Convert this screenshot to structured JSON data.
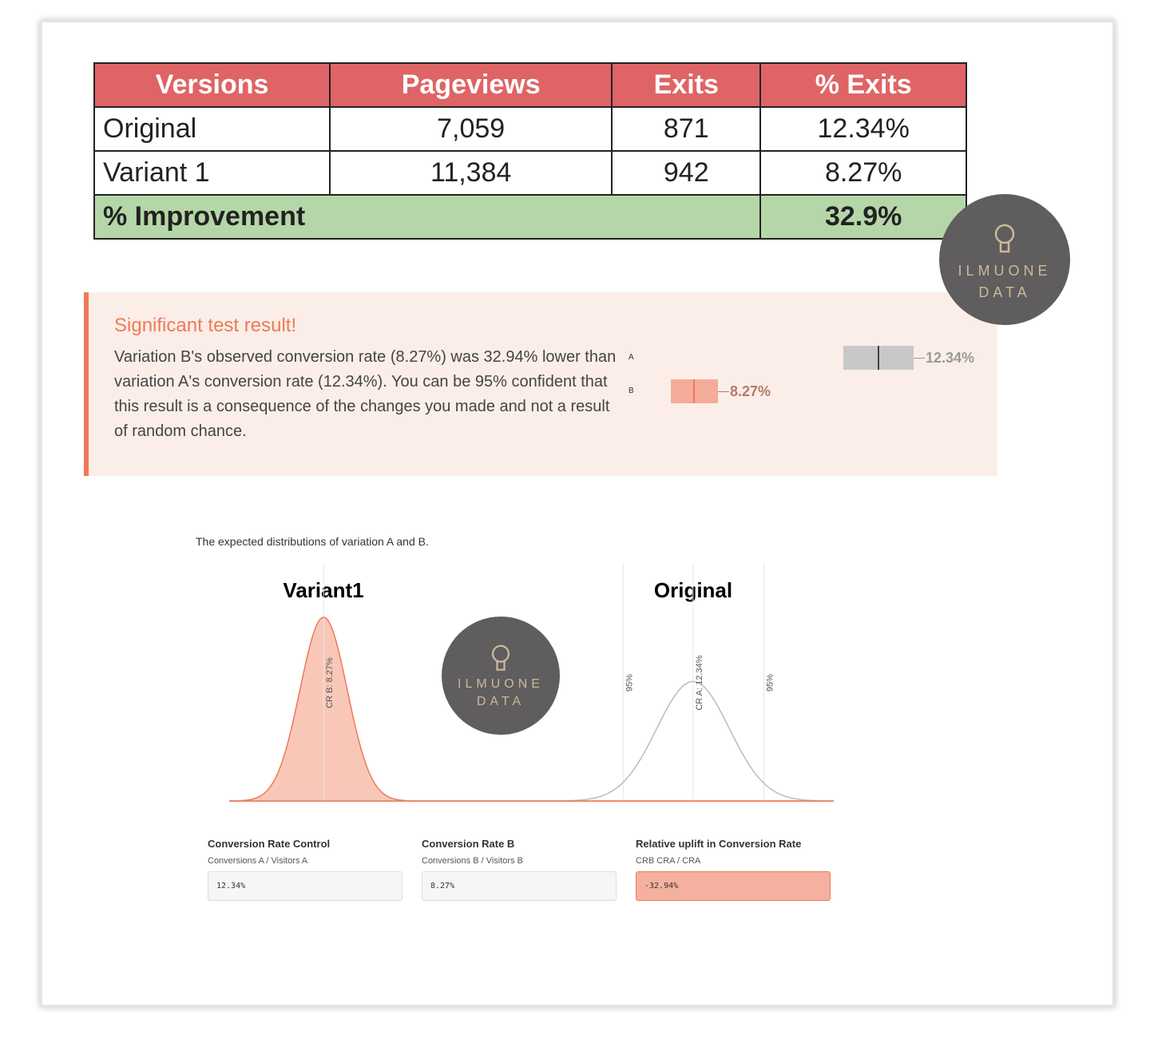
{
  "table": {
    "headers": [
      "Versions",
      "Pageviews",
      "Exits",
      "% Exits"
    ],
    "rows": [
      [
        "Original",
        "7,059",
        "871",
        "12.34%"
      ],
      [
        "Variant 1",
        "11,384",
        "942",
        "8.27%"
      ]
    ],
    "improvement_label": "% Improvement",
    "improvement_value": "32.9%",
    "header_color": "#df6466",
    "improvement_color": "#b5d7a8"
  },
  "alert": {
    "title": "Significant test result!",
    "body": "Variation B's observed conversion rate (8.27%) was 32.94% lower than variation A's conversion rate (12.34%). You can be 95% confident that this result is a consequence of the changes you made and not a result of random chance.",
    "accent": "#ee7a55",
    "bars": [
      {
        "label": "A",
        "value": "12.34%",
        "color": "#c8c8c8"
      },
      {
        "label": "B",
        "value": "8.27%",
        "color": "#f6ab98"
      }
    ]
  },
  "watermark": {
    "line1": "ILMUONE",
    "line2": "DATA",
    "icon": "lightbulb-icon"
  },
  "chart_data": {
    "type": "area",
    "title": "The expected distributions of variation A and B.",
    "xlim": [
      7.23,
      13.89
    ],
    "grid": false,
    "series": [
      {
        "name": "Variant1",
        "mean": 8.27,
        "std": 0.26,
        "color": "#ee7a55",
        "fill": "#f9c7b8",
        "marker_label": "CR B: 8.27%"
      },
      {
        "name": "Original",
        "mean": 12.34,
        "std": 0.4,
        "color": "#bbbbbb",
        "fill": "none",
        "marker_label": "CR A: 12.34%",
        "ci_lower": 11.57,
        "ci_upper": 13.12,
        "ci_label": "95%"
      }
    ]
  },
  "fields": [
    {
      "label": "Conversion Rate Control",
      "sub": "Conversions A / Visitors A",
      "value": "12.34%"
    },
    {
      "label": "Conversion Rate B",
      "sub": "Conversions B / Visitors B",
      "value": "8.27%"
    },
    {
      "label": "Relative uplift in Conversion Rate",
      "sub": "CRB  CRA / CRA",
      "value": "-32.94%"
    }
  ]
}
